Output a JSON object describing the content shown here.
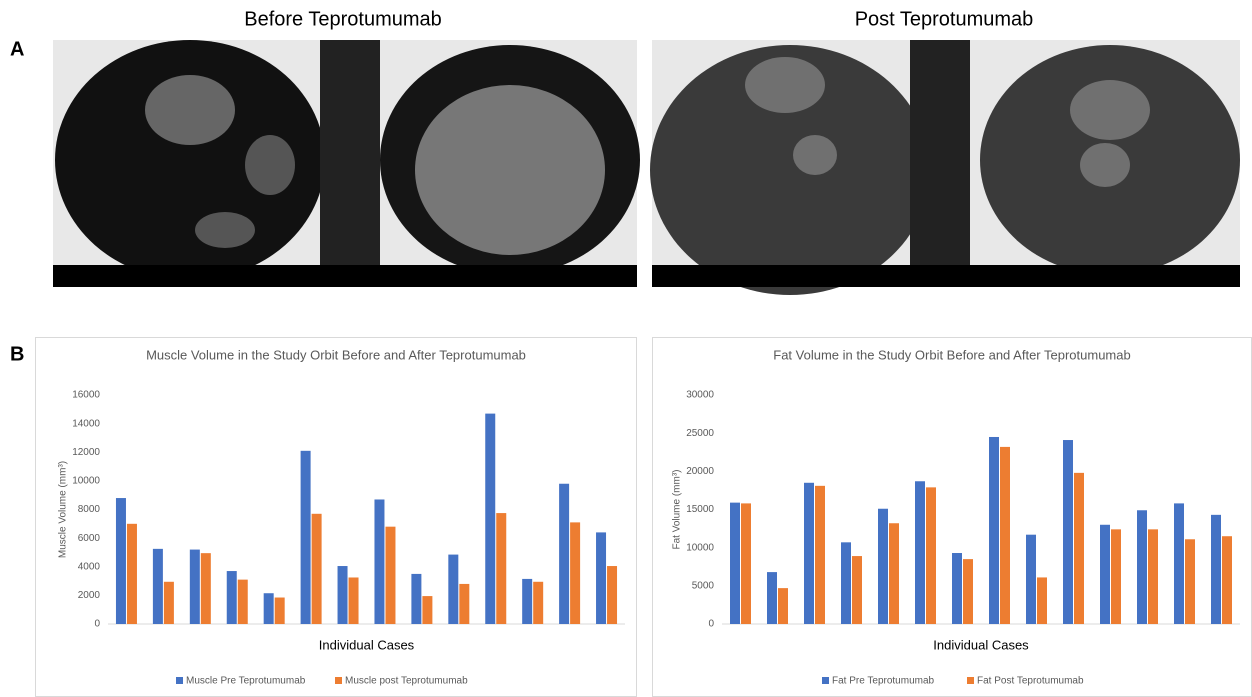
{
  "figure": {
    "label_a": "A",
    "label_b": "B",
    "image_titles": [
      "Before Teprotumumab",
      "Post Teprotumumab"
    ]
  },
  "chart_data": [
    {
      "type": "bar",
      "title": "Muscle Volume in the Study Orbit Before and After Teprotumumab",
      "x_label": "Individual Cases",
      "y_label": "Muscle Volume (mm³)",
      "categories": [
        null,
        null,
        null,
        null,
        null,
        null,
        null,
        null,
        null,
        null,
        null,
        null,
        null,
        null
      ],
      "series": [
        {
          "name": "Muscle Pre Teprotumumab",
          "color": "#4472c4",
          "values": [
            8800,
            5250,
            5200,
            3700,
            2150,
            12100,
            4050,
            8700,
            3500,
            4850,
            14700,
            3150,
            9800,
            6400
          ]
        },
        {
          "name": "Muscle post Teprotumumab",
          "color": "#ed7d31",
          "values": [
            7000,
            2950,
            4950,
            3100,
            1850,
            7700,
            3250,
            6800,
            1950,
            2800,
            7750,
            2950,
            7100,
            4050
          ]
        }
      ],
      "ylim": [
        0,
        16000
      ],
      "yticks": [
        0,
        2000,
        4000,
        6000,
        8000,
        10000,
        12000,
        14000,
        16000
      ],
      "legend": "bottom"
    },
    {
      "type": "bar",
      "title": "Fat Volume in the Study Orbit Before and After Teprotumumab",
      "x_label": "Individual Cases",
      "y_label": "Fat Volume (mm³)",
      "categories": [
        null,
        null,
        null,
        null,
        null,
        null,
        null,
        null,
        null,
        null,
        null,
        null,
        null,
        null
      ],
      "series": [
        {
          "name": "Fat Pre Teprotumumab",
          "color": "#4472c4",
          "values": [
            15900,
            6800,
            18500,
            10700,
            15100,
            18700,
            9300,
            24500,
            11700,
            24100,
            13000,
            14900,
            15800,
            14300
          ]
        },
        {
          "name": "Fat Post Teprotumumab",
          "color": "#ed7d31",
          "values": [
            15800,
            4700,
            18100,
            8900,
            13200,
            17900,
            8500,
            23200,
            6100,
            19800,
            12400,
            12400,
            11100,
            11500
          ]
        }
      ],
      "ylim": [
        0,
        30000
      ],
      "yticks": [
        0,
        5000,
        10000,
        15000,
        20000,
        25000,
        30000
      ],
      "legend": "bottom"
    }
  ]
}
